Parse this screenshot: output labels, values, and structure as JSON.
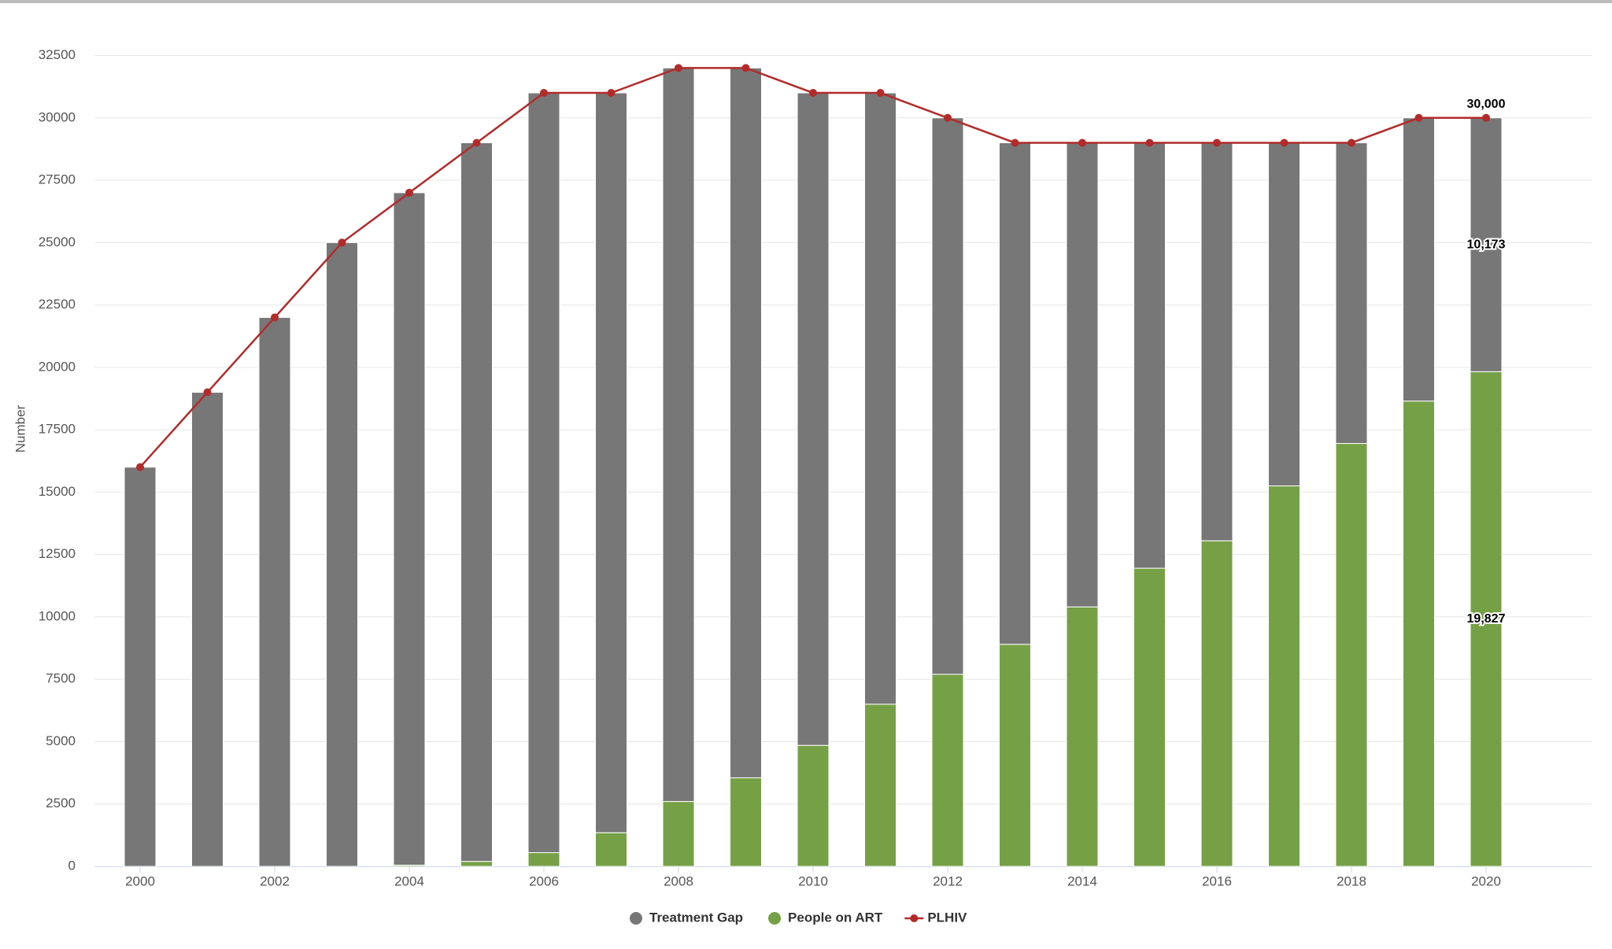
{
  "chart_data": {
    "type": "bar",
    "stacked": true,
    "y_label": "Number",
    "categories": [
      "2000",
      null,
      "2002",
      null,
      "2004",
      null,
      "2006",
      null,
      "2008",
      null,
      "2010",
      null,
      "2012",
      null,
      "2014",
      null,
      "2016",
      null,
      "2018",
      null,
      "2020"
    ],
    "series": [
      {
        "name": "Treatment Gap",
        "type": "bar",
        "color": "#777777",
        "values": [
          16000,
          19000,
          22000,
          25000,
          26950,
          28800,
          30450,
          29650,
          29400,
          28450,
          26150,
          24500,
          22300,
          20100,
          18600,
          17050,
          15950,
          13750,
          12050,
          11350,
          10173
        ],
        "value_labels": [
          null,
          null,
          null,
          null,
          null,
          null,
          null,
          null,
          null,
          null,
          null,
          null,
          null,
          null,
          null,
          null,
          null,
          null,
          null,
          null,
          "10,173"
        ]
      },
      {
        "name": "People on ART",
        "type": "bar",
        "color": "#76a046",
        "values": [
          0,
          0,
          0,
          0,
          50,
          200,
          550,
          1350,
          2600,
          3550,
          4850,
          6500,
          7700,
          8900,
          10400,
          11950,
          13050,
          15250,
          16950,
          18650,
          19827
        ],
        "value_labels": [
          null,
          null,
          null,
          null,
          null,
          null,
          null,
          null,
          null,
          null,
          null,
          null,
          null,
          null,
          null,
          null,
          null,
          null,
          null,
          null,
          "19,827"
        ]
      },
      {
        "name": "PLHIV",
        "type": "line",
        "color": "#b22b2b",
        "values": [
          16000,
          19000,
          22000,
          25000,
          27000,
          29000,
          31000,
          31000,
          32000,
          32000,
          31000,
          31000,
          30000,
          29000,
          29000,
          29000,
          29000,
          29000,
          29000,
          30000,
          30000
        ],
        "value_labels": [
          null,
          null,
          null,
          null,
          null,
          null,
          null,
          null,
          null,
          null,
          null,
          null,
          null,
          null,
          null,
          null,
          null,
          null,
          null,
          null,
          "30,000"
        ]
      }
    ],
    "ylim": [
      0,
      32500
    ],
    "yticks": [
      0,
      2500,
      5000,
      7500,
      10000,
      12500,
      15000,
      17500,
      20000,
      22500,
      25000,
      27500,
      30000,
      32500
    ],
    "grid": true,
    "legend": "bottom"
  }
}
